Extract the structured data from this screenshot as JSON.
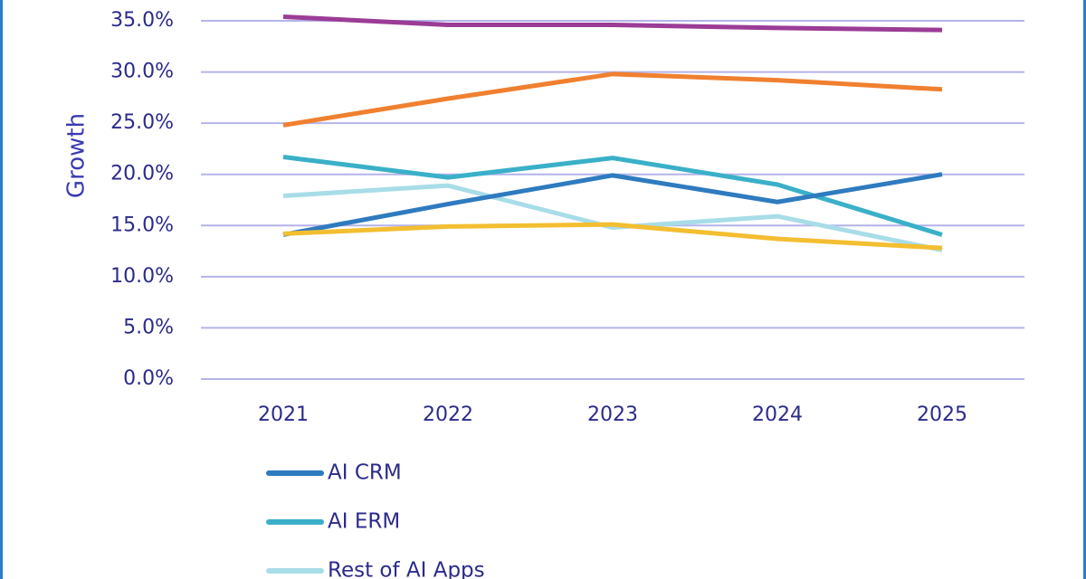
{
  "chart_data": {
    "type": "line",
    "y_label": "Growth",
    "categories": [
      "2021",
      "2022",
      "2023",
      "2024",
      "2025"
    ],
    "ylim": [
      0,
      35
    ],
    "yticks": [
      {
        "value": 0,
        "label": "0.0%"
      },
      {
        "value": 5,
        "label": "5.0%"
      },
      {
        "value": 10,
        "label": "10.0%"
      },
      {
        "value": 15,
        "label": "15.0%"
      },
      {
        "value": 20,
        "label": "20.0%"
      },
      {
        "value": 25,
        "label": "25.0%"
      },
      {
        "value": 30,
        "label": "30.0%"
      },
      {
        "value": 35,
        "label": "35.0%"
      }
    ],
    "grid": true,
    "series": [
      {
        "color": "#9b3c96",
        "values": [
          35.4,
          34.6,
          34.6,
          34.3,
          34.1
        ]
      },
      {
        "color": "#f08030",
        "values": [
          24.8,
          27.4,
          29.8,
          29.2,
          28.3
        ]
      },
      {
        "name": "AI ERM",
        "color": "#3ab0c8",
        "values": [
          21.7,
          19.7,
          21.6,
          19.0,
          14.1
        ]
      },
      {
        "name": "Rest of AI Apps",
        "color": "#a8dde8",
        "values": [
          17.9,
          18.9,
          14.8,
          15.9,
          12.6
        ]
      },
      {
        "name": "AI CRM",
        "color": "#2e7bbf",
        "values": [
          14.1,
          17.1,
          19.9,
          17.3,
          20.0
        ]
      },
      {
        "color": "#f3be30",
        "values": [
          14.2,
          14.9,
          15.1,
          13.7,
          12.8
        ]
      }
    ],
    "legend_order": [
      4,
      2,
      3
    ]
  }
}
